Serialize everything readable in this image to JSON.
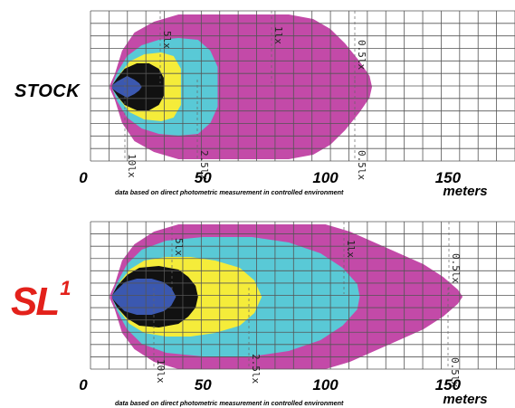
{
  "colors": {
    "lux_0_5": "#c34aa8",
    "lux_1": "#c34aa8",
    "lux_2_5": "#59c9d6",
    "lux_5": "#f5ec3a",
    "lux_10": "#111111",
    "core": "#3b58b0",
    "grid": "#555555",
    "sl1_logo": "#e3211b"
  },
  "chart_data": [
    {
      "type": "area",
      "name": "STOCK",
      "label": "STOCK",
      "xlim": [
        0,
        170
      ],
      "x_ticks": [
        "0",
        "50",
        "100",
        "150"
      ],
      "x_tick_values": [
        0,
        50,
        100,
        150
      ],
      "unit": "meters",
      "footnote": "data based on direct photometric measurement in controlled environment",
      "isolines": [
        {
          "label": "5lx",
          "x": 30
        },
        {
          "label": "1lx",
          "x": 75
        },
        {
          "label": "0.5lx",
          "x": 107
        },
        {
          "label": "10lx",
          "x": 15
        },
        {
          "label": "2.5lx",
          "x": 45
        },
        {
          "label": "0.5lx",
          "x": 107
        }
      ],
      "contours": [
        {
          "level": "0.5 lx",
          "max_distance_m": 109
        },
        {
          "level": "2.5 lx",
          "max_distance_m": 46
        },
        {
          "level": "5 lx",
          "max_distance_m": 31
        },
        {
          "level": "10 lx",
          "max_distance_m": 24
        }
      ]
    },
    {
      "type": "area",
      "name": "SL1",
      "label": "SL",
      "label_sup": "1",
      "xlim": [
        0,
        170
      ],
      "x_ticks": [
        "0",
        "50",
        "100",
        "150"
      ],
      "x_tick_values": [
        0,
        50,
        100,
        150
      ],
      "unit": "meters",
      "footnote": "data based on direct photometric measurement in controlled environment",
      "isolines": [
        {
          "label": "5lx",
          "x": 30
        },
        {
          "label": "1lx",
          "x": 95
        },
        {
          "label": "0.5lx",
          "x": 143
        },
        {
          "label": "10lx",
          "x": 20
        },
        {
          "label": "2.5lx",
          "x": 65
        },
        {
          "label": "0.5lx",
          "x": 143
        }
      ],
      "contours": [
        {
          "level": "0.5 lx",
          "max_distance_m": 146
        },
        {
          "level": "2.5 lx",
          "max_distance_m": 104
        },
        {
          "level": "5 lx",
          "max_distance_m": 64
        },
        {
          "level": "10 lx",
          "max_distance_m": 38
        }
      ]
    }
  ]
}
